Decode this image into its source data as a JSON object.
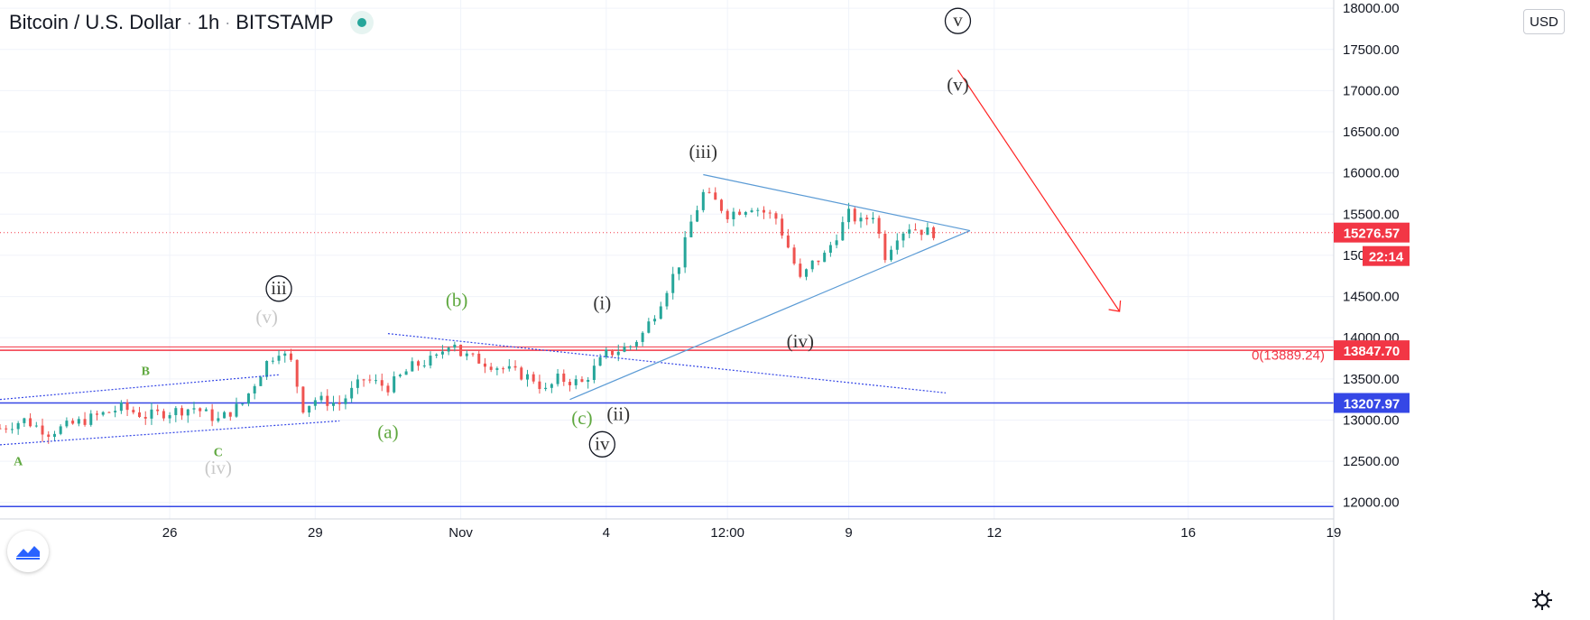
{
  "header": {
    "symbol": "Bitcoin / U.S. Dollar",
    "interval": "1h",
    "exchange": "BITSTAMP",
    "separator": "·"
  },
  "currency_button": "USD",
  "colors": {
    "up": "#26a69a",
    "down": "#ef5350",
    "trendline": "#5b9bd5",
    "horizontal": "#3547e6",
    "fib_line": "#f23645",
    "arrow": "#ff2222",
    "wave_green": "#5fa83f",
    "wave_gray": "#c8c8c8",
    "wave_dark": "#333333"
  },
  "chart_data": {
    "type": "candlestick",
    "title": "",
    "xlabel": "",
    "ylabel": "",
    "ylim": [
      11800,
      18100
    ],
    "y_ticks": [
      12000,
      12500,
      13000,
      13500,
      14000,
      14500,
      15000,
      15500,
      16000,
      16500,
      17000,
      17500,
      18000
    ],
    "x_ticks": [
      {
        "label": "26",
        "date": "2020-10-26"
      },
      {
        "label": "29",
        "date": "2020-10-29"
      },
      {
        "label": "Nov",
        "date": "2020-11-01"
      },
      {
        "label": "4",
        "date": "2020-11-04"
      },
      {
        "label": "12:00",
        "date": "2020-11-06 12:00"
      },
      {
        "label": "9",
        "date": "2020-11-09"
      },
      {
        "label": "12",
        "date": "2020-11-12"
      },
      {
        "label": "16",
        "date": "2020-11-16"
      },
      {
        "label": "19",
        "date": "2020-11-19"
      }
    ],
    "xlim": [
      "2020-10-22 12:00",
      "2020-11-19 00:00"
    ],
    "series": [
      {
        "name": "BTCUSD",
        "values": [
          [
            "2020-10-22 12:00",
            12900
          ],
          [
            "2020-10-23 00:00",
            13000
          ],
          [
            "2020-10-23 12:00",
            12850
          ],
          [
            "2020-10-24 00:00",
            12950
          ],
          [
            "2020-10-24 12:00",
            13050
          ],
          [
            "2020-10-25 00:00",
            13150
          ],
          [
            "2020-10-25 12:00",
            13050
          ],
          [
            "2020-10-26 00:00",
            13100
          ],
          [
            "2020-10-26 12:00",
            13150
          ],
          [
            "2020-10-27 00:00",
            13000
          ],
          [
            "2020-10-27 12:00",
            13200
          ],
          [
            "2020-10-28 00:00",
            13700
          ],
          [
            "2020-10-28 06:00",
            13850
          ],
          [
            "2020-10-28 12:00",
            13700
          ],
          [
            "2020-10-28 18:00",
            13150
          ],
          [
            "2020-10-29 00:00",
            13250
          ],
          [
            "2020-10-29 12:00",
            13200
          ],
          [
            "2020-10-30 00:00",
            13500
          ],
          [
            "2020-10-30 12:00",
            13400
          ],
          [
            "2020-10-31 00:00",
            13650
          ],
          [
            "2020-10-31 12:00",
            13750
          ],
          [
            "2020-10-31 20:00",
            14000
          ],
          [
            "2020-11-01 00:00",
            13800
          ],
          [
            "2020-11-01 12:00",
            13700
          ],
          [
            "2020-11-02 00:00",
            13600
          ],
          [
            "2020-11-02 12:00",
            13500
          ],
          [
            "2020-11-02 18:00",
            13350
          ],
          [
            "2020-11-03 00:00",
            13500
          ],
          [
            "2020-11-03 12:00",
            13450
          ],
          [
            "2020-11-04 00:00",
            13800
          ],
          [
            "2020-11-04 06:00",
            13850
          ],
          [
            "2020-11-04 12:00",
            13900
          ],
          [
            "2020-11-04 18:00",
            14050
          ],
          [
            "2020-11-05 00:00",
            14300
          ],
          [
            "2020-11-05 12:00",
            14900
          ],
          [
            "2020-11-05 18:00",
            15400
          ],
          [
            "2020-11-06 00:00",
            15750
          ],
          [
            "2020-11-06 06:00",
            15650
          ],
          [
            "2020-11-06 12:00",
            15500
          ],
          [
            "2020-11-07 00:00",
            15600
          ],
          [
            "2020-11-07 12:00",
            15450
          ],
          [
            "2020-11-07 18:00",
            15100
          ],
          [
            "2020-11-08 00:00",
            14700
          ],
          [
            "2020-11-08 06:00",
            14900
          ],
          [
            "2020-11-08 12:00",
            15000
          ],
          [
            "2020-11-08 18:00",
            15250
          ],
          [
            "2020-11-09 00:00",
            15500
          ],
          [
            "2020-11-09 06:00",
            15400
          ],
          [
            "2020-11-09 12:00",
            15500
          ],
          [
            "2020-11-09 18:00",
            15000
          ],
          [
            "2020-11-10 00:00",
            15250
          ],
          [
            "2020-11-10 06:00",
            15350
          ],
          [
            "2020-11-10 12:00",
            15300
          ],
          [
            "2020-11-10 18:00",
            15276.57
          ]
        ]
      }
    ],
    "price_lines": [
      {
        "label": "15276.57",
        "value": 15276.57,
        "style": "dotted",
        "color": "#f23645"
      },
      {
        "label": "13847.70",
        "value": 13847.7,
        "style": "solid",
        "color": "#f23645"
      },
      {
        "label": "13207.97",
        "value": 13207.97,
        "style": "solid",
        "color": "#3547e6"
      },
      {
        "label": "",
        "value": 11950,
        "style": "solid",
        "color": "#3547e6"
      }
    ],
    "countdown": "22:14",
    "fib_label": "0(13889.24)",
    "wave_labels": [
      {
        "text": "B",
        "color": "green"
      },
      {
        "text": "A",
        "color": "green"
      },
      {
        "text": "C",
        "color": "green"
      },
      {
        "text": "(iv)",
        "color": "gray"
      },
      {
        "text": "(v)",
        "color": "gray"
      },
      {
        "text": "iii",
        "color": "dark",
        "circled": true
      },
      {
        "text": "(a)",
        "color": "green"
      },
      {
        "text": "(b)",
        "color": "green"
      },
      {
        "text": "(c)",
        "color": "green"
      },
      {
        "text": "iv",
        "color": "dark",
        "circled": true
      },
      {
        "text": "(i)",
        "color": "dark"
      },
      {
        "text": "(ii)",
        "color": "dark"
      },
      {
        "text": "(iii)",
        "color": "dark"
      },
      {
        "text": "(iv)",
        "color": "dark"
      },
      {
        "text": "(v)",
        "color": "dark"
      },
      {
        "text": "v",
        "color": "dark",
        "circled": true
      }
    ]
  }
}
